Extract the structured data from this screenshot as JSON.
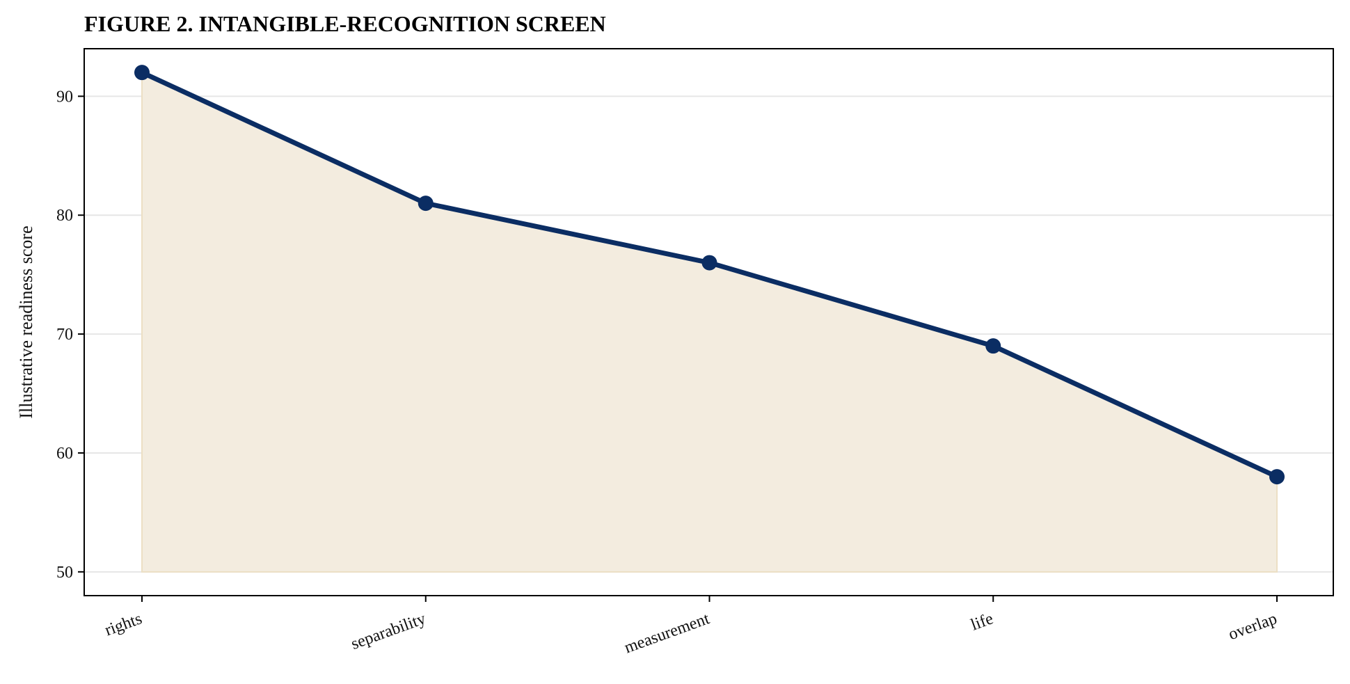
{
  "chart_data": {
    "type": "area",
    "title": "FIGURE 2. INTANGIBLE-RECOGNITION SCREEN",
    "xlabel": "",
    "ylabel": "Illustrative readiness score",
    "categories": [
      "rights",
      "separability",
      "measurement",
      "life",
      "overlap"
    ],
    "series": [
      {
        "values": [
          92,
          81,
          76,
          69,
          58
        ]
      }
    ],
    "fill_baseline": 50,
    "ylim": [
      48,
      94
    ],
    "yticks": [
      50,
      60,
      70,
      80,
      90
    ],
    "grid": "horizontal",
    "colors": {
      "line": "#0b2d63",
      "fill": "#f3ecdf",
      "grid": "#e6e6e6"
    }
  }
}
